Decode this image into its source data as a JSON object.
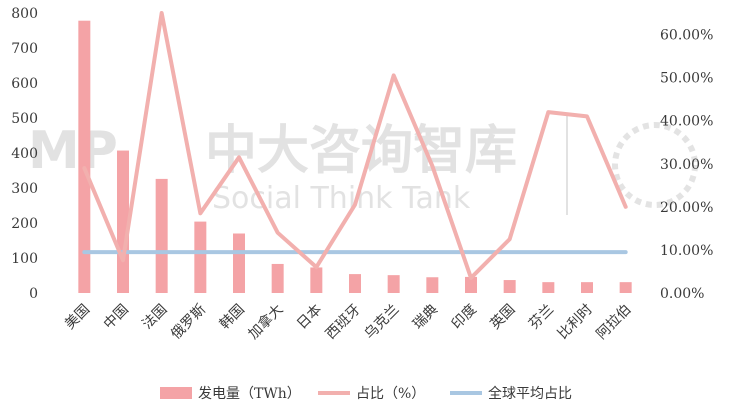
{
  "chart_data": {
    "type": "bar+line",
    "categories": [
      "美国",
      "中国",
      "法国",
      "俄罗斯",
      "韩国",
      "加拿大",
      "日本",
      "西班牙",
      "乌克兰",
      "瑞典",
      "印度",
      "英国",
      "芬兰",
      "比利时",
      "阿拉伯"
    ],
    "series": [
      {
        "name": "发电量（TWh）",
        "type": "bar",
        "axis": "left",
        "values": [
          778,
          407,
          326,
          204,
          170,
          83,
          73,
          54,
          51,
          45,
          46,
          37,
          31,
          31,
          31
        ]
      },
      {
        "name": "占比（%）",
        "type": "line",
        "axis": "right",
        "values": [
          29.0,
          7.6,
          65.0,
          18.5,
          31.5,
          14.0,
          6.0,
          20.5,
          50.5,
          29.5,
          3.5,
          12.5,
          42.0,
          41.0,
          20.0
        ]
      },
      {
        "name": "全球平均占比",
        "type": "line",
        "axis": "right",
        "values": [
          9.5,
          9.5,
          9.5,
          9.5,
          9.5,
          9.5,
          9.5,
          9.5,
          9.5,
          9.5,
          9.5,
          9.5,
          9.5,
          9.5,
          9.5
        ]
      }
    ],
    "left_axis": {
      "min": 0,
      "max": 800,
      "step": 100,
      "ticks": [
        "0",
        "100",
        "200",
        "300",
        "400",
        "500",
        "600",
        "700",
        "800"
      ]
    },
    "right_axis": {
      "min": 0,
      "max": 65,
      "step": 10,
      "ticks": [
        "0.00%",
        "10.00%",
        "20.00%",
        "30.00%",
        "40.00%",
        "50.00%",
        "60.00%"
      ]
    },
    "legend_position": "bottom",
    "grid": false,
    "colors": {
      "bar": "#f4a3a6",
      "share_line": "#f2b0ae",
      "avg_line": "#a9c7e2",
      "text": "#3a3a3a"
    }
  },
  "watermark": {
    "logo": "MP",
    "title": "中大咨询智库",
    "subtitle": "Social Think Tank"
  }
}
